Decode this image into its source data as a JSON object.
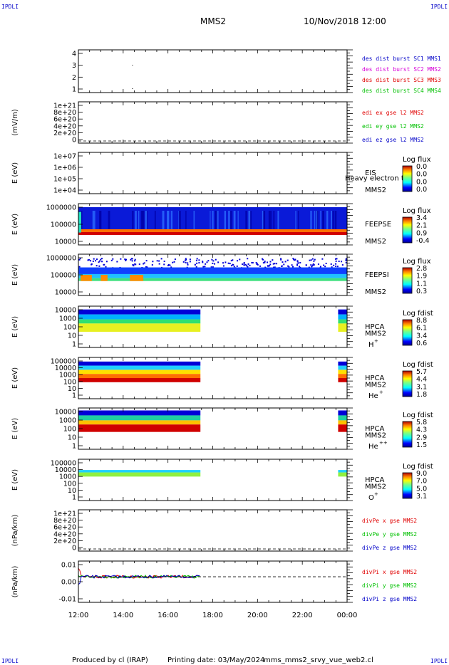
{
  "header": {
    "corner_tl": "IPDLI",
    "corner_tr": "IPDLI",
    "corner_bl": "IPDLI",
    "corner_br": "IPDLI",
    "mission": "MMS2",
    "datetime": "10/Nov/2018 12:00"
  },
  "footer": {
    "credit": "Produced by cl (IRAP)",
    "printing": "Printing date: 03/May/2024",
    "script": "mms_mms2_srvy_vue_web2.cl"
  },
  "colors": {
    "mms1": "#0000c8",
    "mms2": "#d800d8",
    "mms3": "#e00000",
    "mms4": "#00c000",
    "x": "#e00000",
    "y": "#00c000",
    "z": "#0000c8"
  },
  "chart_data": {
    "type": "heatmap",
    "x_ticks": [
      "12:00",
      "14:00",
      "16:00",
      "18:00",
      "20:00",
      "22:00",
      "00:00"
    ],
    "xlim": [
      12,
      24
    ],
    "panels": [
      {
        "id": "des-dist",
        "ylabel": "",
        "yticks": [
          "4",
          "3",
          "2",
          "1"
        ],
        "legend": [
          {
            "text": "des dist burst SC1 MMS1",
            "color": "#0000c8"
          },
          {
            "text": "des dist burst SC2 MMS2",
            "color": "#d800d8"
          },
          {
            "text": "des dist burst SC3 MMS3",
            "color": "#e00000"
          },
          {
            "text": "des dist burst SC4 MMS4",
            "color": "#00c000"
          }
        ]
      },
      {
        "id": "edi",
        "ylabel": "(mV/m)",
        "yticks": [
          "1e+21",
          "8e+20",
          "6e+20",
          "4e+20",
          "2e+20",
          "0"
        ],
        "legend": [
          {
            "text": "edi ex gse l2 MMS2",
            "color": "#e00000"
          },
          {
            "text": "edi ey gse l2 MMS2",
            "color": "#00c000"
          },
          {
            "text": "edi ez gse l2 MMS2",
            "color": "#0000c8"
          }
        ]
      },
      {
        "id": "eis",
        "ylabel": "E (eV)",
        "yticks": [
          "1e+07",
          "1e+06",
          "1e+05",
          "1e+04"
        ],
        "instrument": "EIS",
        "species": "",
        "spacecraft": "MMS2",
        "overlay": "Heavy electron to",
        "cbar_title": "Log flux",
        "cbar_ticks": [
          "0.0",
          "0.0",
          "0.0",
          "0.0"
        ]
      },
      {
        "id": "feepse",
        "ylabel": "E (eV)",
        "yticks": [
          "1000000",
          "100000",
          "10000"
        ],
        "instrument": "FEEPSE",
        "spacecraft": "MMS2",
        "cbar_title": "Log flux",
        "cbar_ticks": [
          "3.4",
          "2.1",
          "0.9",
          "-0.4"
        ]
      },
      {
        "id": "feepsi",
        "ylabel": "E (eV)",
        "yticks": [
          "1000000",
          "100000",
          "10000"
        ],
        "instrument": "FEEPSI",
        "spacecraft": "MMS2",
        "cbar_title": "Log flux",
        "cbar_ticks": [
          "2.8",
          "1.9",
          "1.1",
          "0.3"
        ]
      },
      {
        "id": "hpca-h",
        "ylabel": "E (eV)",
        "yticks": [
          "10000",
          "1000",
          "100",
          "10",
          "1"
        ],
        "instrument": "HPCA",
        "spacecraft": "MMS2",
        "species_base": "H",
        "species_sup": "+",
        "cbar_title": "Log fdist",
        "cbar_ticks": [
          "8.8",
          "6.1",
          "3.4",
          "0.6"
        ]
      },
      {
        "id": "hpca-he",
        "ylabel": "E (eV)",
        "yticks": [
          "100000",
          "10000",
          "1000",
          "100",
          "10",
          "1"
        ],
        "instrument": "HPCA",
        "spacecraft": "MMS2",
        "species_base": "He",
        "species_sup": "+",
        "cbar_title": "Log fdist",
        "cbar_ticks": [
          "5.7",
          "4.4",
          "3.1",
          "1.8"
        ]
      },
      {
        "id": "hpca-hepp",
        "ylabel": "E (eV)",
        "yticks": [
          "10000",
          "1000",
          "100",
          "10",
          "1"
        ],
        "instrument": "HPCA",
        "spacecraft": "MMS2",
        "species_base": "He",
        "species_sup": "++",
        "cbar_title": "Log fdist",
        "cbar_ticks": [
          "5.8",
          "4.3",
          "2.9",
          "1.5"
        ]
      },
      {
        "id": "hpca-o",
        "ylabel": "E (eV)",
        "yticks": [
          "100000",
          "10000",
          "1000",
          "100",
          "10",
          "1"
        ],
        "instrument": "HPCA",
        "spacecraft": "MMS2",
        "species_base": "O",
        "species_sup": "+",
        "cbar_title": "Log fdist",
        "cbar_ticks": [
          "9.0",
          "7.0",
          "5.0",
          "3.1"
        ]
      },
      {
        "id": "divpe",
        "ylabel": "(nPa/km)",
        "yticks": [
          "1e+21",
          "8e+20",
          "6e+20",
          "4e+20",
          "2e+20",
          "0"
        ],
        "legend": [
          {
            "text": "divPe x gse MMS2",
            "color": "#e00000"
          },
          {
            "text": "divPe y gse MMS2",
            "color": "#00c000"
          },
          {
            "text": "divPe z gse MMS2",
            "color": "#0000c8"
          }
        ]
      },
      {
        "id": "divpi",
        "ylabel": "(nPa/km)",
        "yticks": [
          "0.01",
          "0.00",
          "-0.01"
        ],
        "legend": [
          {
            "text": "divPi x gse MMS2",
            "color": "#e00000"
          },
          {
            "text": "divPi y gse MMS2",
            "color": "#00c000"
          },
          {
            "text": "divPi z gse MMS2",
            "color": "#0000c8"
          }
        ]
      }
    ]
  }
}
